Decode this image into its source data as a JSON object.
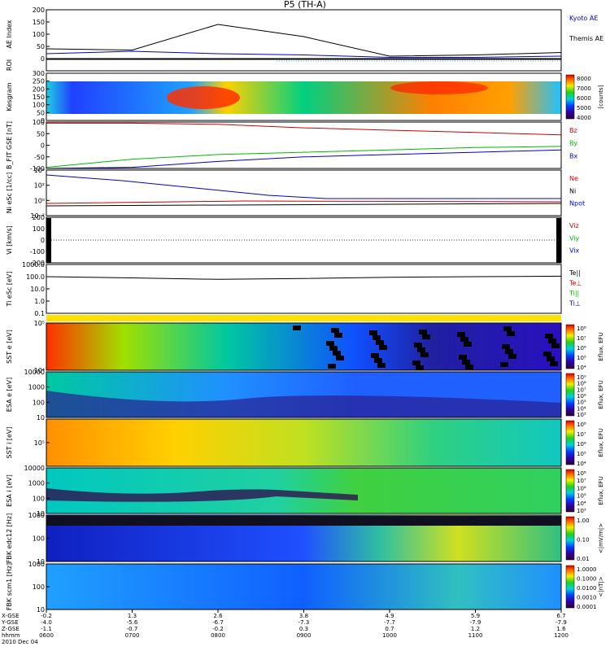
{
  "header": {
    "title": "P5 (TH-A)"
  },
  "colors": {
    "blue": "#0000cc",
    "red": "#cc0000",
    "green": "#00bb00",
    "black": "#000000"
  },
  "panels": [
    {
      "id": "ae",
      "ylabel": "AE Index",
      "yticks": [
        "200",
        "150",
        "100",
        "50",
        "0"
      ],
      "right": [
        {
          "t": "Kyoto AE",
          "c": "#0000cc"
        },
        {
          "t": "Themis AE",
          "c": "#000000"
        }
      ]
    },
    {
      "id": "roi",
      "ylabel": "ROI",
      "yticks": [],
      "right": []
    },
    {
      "id": "kp",
      "ylabel": "Kesgram",
      "yticks": [
        "300",
        "250",
        "200",
        "150",
        "100",
        "50",
        "0"
      ],
      "colorbar": [
        "8000",
        "7000",
        "6000",
        "5000",
        "4000"
      ],
      "cbtitle": "[counts]"
    },
    {
      "id": "bfit",
      "ylabel": "B_FIT GSE [nT]",
      "yticks": [
        "100",
        "50",
        "0",
        "-50",
        "-100"
      ],
      "right": [
        {
          "t": "Bz",
          "c": "#cc0000"
        },
        {
          "t": "By",
          "c": "#00bb00"
        },
        {
          "t": "Bx",
          "c": "#0000cc"
        }
      ]
    },
    {
      "id": "ni",
      "ylabel": "Ni eSc [1/cc]",
      "yticks": [
        "10⁴",
        "10²",
        "10⁰",
        "10⁻²"
      ],
      "right": [
        {
          "t": "Ne",
          "c": "#cc0000"
        },
        {
          "t": "Ni",
          "c": "#000000"
        },
        {
          "t": "Npot",
          "c": "#0000cc"
        }
      ]
    },
    {
      "id": "vi",
      "ylabel": "Vi [km/s]",
      "yticks": [
        "200",
        "100",
        "0",
        "-100",
        "-200"
      ],
      "right": [
        {
          "t": "Viz",
          "c": "#cc0000"
        },
        {
          "t": "Viy",
          "c": "#00bb00"
        },
        {
          "t": "Vix",
          "c": "#0000cc"
        }
      ]
    },
    {
      "id": "ti",
      "ylabel": "Ti eSc [eV]",
      "yticks": [
        "1000.0",
        "100.0",
        "10.0",
        "1.0",
        "0.1"
      ],
      "right": [
        {
          "t": "Te||",
          "c": "#000000"
        },
        {
          "t": "Te⊥",
          "c": "#cc0000"
        },
        {
          "t": "Ti||",
          "c": "#00bb00"
        },
        {
          "t": "Ti⊥",
          "c": "#0000cc"
        }
      ]
    },
    {
      "id": "sste",
      "ylabel": "SST e [eV]",
      "yticks": [
        "10⁵",
        "10⁴"
      ],
      "cb": [
        "10⁸",
        "10⁷",
        "10⁶",
        "10⁵",
        "10⁴"
      ],
      "cbtitle": "Eflux, EFU"
    },
    {
      "id": "esae",
      "ylabel": "ESA e [eV]",
      "yticks": [
        "10000",
        "1000",
        "100",
        "10"
      ],
      "cb": [
        "10⁹",
        "10⁸",
        "10⁷",
        "10⁶",
        "10⁵",
        "10⁴",
        "10³"
      ],
      "cbtitle": "Eflux, EFU"
    },
    {
      "id": "ssti",
      "ylabel": "SST i [eV]",
      "yticks": [
        "10⁵"
      ],
      "cb": [
        "10⁸",
        "10⁷",
        "10⁶",
        "10⁵",
        "10⁴"
      ],
      "cbtitle": "Eflux, EFU"
    },
    {
      "id": "esai",
      "ylabel": "ESA i [eV]",
      "yticks": [
        "10000",
        "1000",
        "100",
        "10"
      ],
      "cb": [
        "10⁸",
        "10⁷",
        "10⁶",
        "10⁵",
        "10⁴",
        "10³"
      ],
      "cbtitle": "Eflux, EFU"
    },
    {
      "id": "fbke",
      "ylabel": "FBK edc12 [Hz]",
      "yticks": [
        "1000",
        "100",
        "10"
      ],
      "cb": [
        "1.00",
        "0.10",
        "0.01"
      ],
      "cbtitle": "<|mV/m|>"
    },
    {
      "id": "fbkb",
      "ylabel": "FBK scm1 [Hz]",
      "yticks": [
        "1000",
        "100",
        "10"
      ],
      "cb": [
        "1.0000",
        "0.1000",
        "0.0100",
        "0.0010",
        "0.0001"
      ],
      "cbtitle": "<|nT|>"
    }
  ],
  "xaxis": {
    "rowlabels": [
      "X-GSE",
      "Y-GSE",
      "Z-GSE",
      "hhmm",
      "2010 Dec 04"
    ],
    "columns": [
      [
        "-0.2",
        "1.3",
        "2.6",
        "3.8",
        "4.9",
        "5.9",
        "6.7"
      ],
      [
        "-4.0",
        "-5.6",
        "-6.7",
        "-7.3",
        "-7.7",
        "-7.9",
        "-7.9"
      ],
      [
        "-1.1",
        "-0.7",
        "-0.2",
        "0.3",
        "0.7",
        "1.2",
        "1.6"
      ],
      [
        "0600",
        "0700",
        "0800",
        "0900",
        "1000",
        "1100",
        "1200"
      ]
    ]
  },
  "chart_data": {
    "type": "line",
    "title": "P5 (TH-A)",
    "x": [
      "0600",
      "0700",
      "0800",
      "0900",
      "1000",
      "1100",
      "1200"
    ],
    "xlabel": "hhmm",
    "series": [
      {
        "name": "Themis AE",
        "panel": "AE Index",
        "values": [
          40,
          35,
          140,
          90,
          10,
          15,
          25
        ]
      },
      {
        "name": "Kyoto AE",
        "panel": "AE Index",
        "values": [
          20,
          30,
          20,
          15,
          5,
          5,
          10
        ]
      },
      {
        "name": "Bz",
        "panel": "B_FIT",
        "values": [
          95,
          95,
          90,
          75,
          65,
          55,
          45
        ]
      },
      {
        "name": "By",
        "panel": "B_FIT",
        "values": [
          -95,
          -60,
          -40,
          -30,
          -20,
          -10,
          -5
        ]
      },
      {
        "name": "Bx",
        "panel": "B_FIT",
        "values": [
          -100,
          -95,
          -70,
          -50,
          -40,
          -30,
          -20
        ]
      },
      {
        "name": "Ti||",
        "panel": "Ti",
        "values": [
          1000,
          1000,
          1000,
          1000,
          1000,
          1000,
          1000
        ]
      },
      {
        "name": "Te||",
        "panel": "Ti",
        "values": [
          100,
          80,
          60,
          70,
          90,
          100,
          110
        ]
      }
    ],
    "ylim": {
      "AE Index": [
        0,
        200
      ],
      "B_FIT": [
        -100,
        100
      ]
    },
    "grid": false,
    "legend": "right"
  }
}
